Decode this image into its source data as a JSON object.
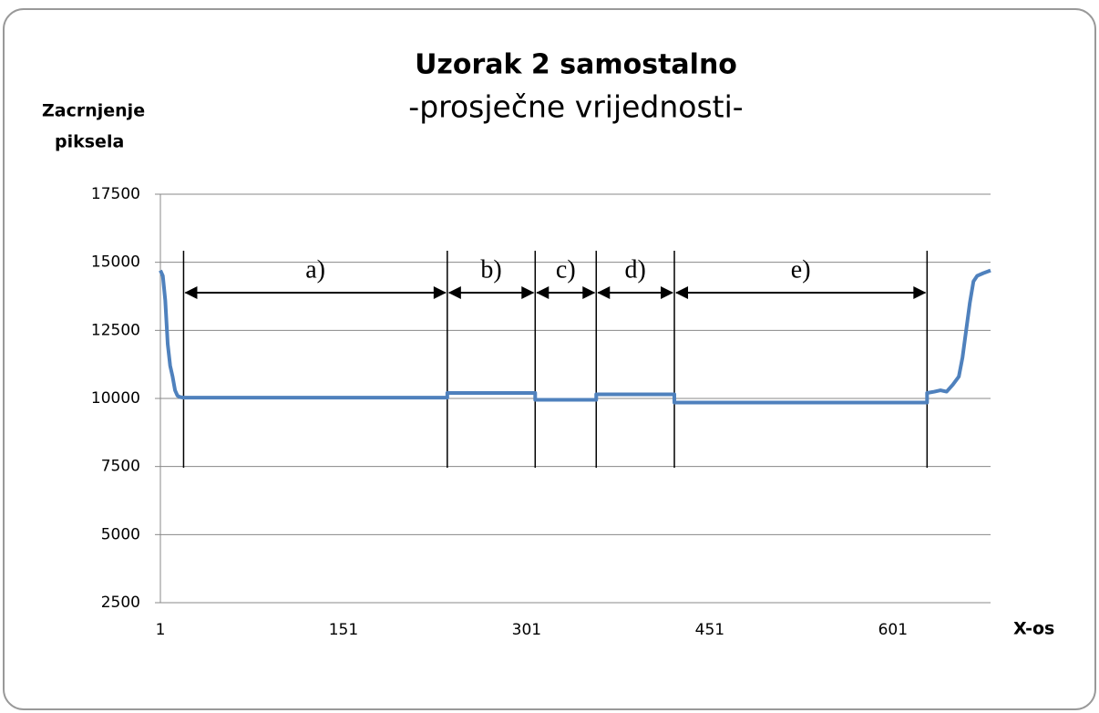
{
  "chart_data": {
    "type": "line",
    "title": "Uzorak 2 samostalno",
    "subtitle": "-prosječne vrijednosti-",
    "ylabel": [
      "Zacrnjenje",
      "piksela"
    ],
    "xlabel": "X-os",
    "x": [
      1,
      3,
      5,
      7,
      9,
      11,
      13,
      15,
      17,
      20,
      236,
      236,
      308,
      308,
      358,
      358,
      422,
      422,
      629,
      629,
      635,
      640,
      645,
      650,
      655,
      658,
      661,
      664,
      667,
      670,
      675,
      681
    ],
    "series": [
      {
        "name": "Zacrnjenje piksela",
        "color": "#4f81bd",
        "values": [
          14700,
          14500,
          13600,
          12000,
          11200,
          10800,
          10300,
          10100,
          10050,
          10030,
          10030,
          10200,
          10200,
          9950,
          9950,
          10150,
          10150,
          9850,
          9850,
          10200,
          10250,
          10300,
          10250,
          10500,
          10800,
          11500,
          12500,
          13500,
          14300,
          14500,
          14600,
          14700
        ]
      }
    ],
    "xlim": [
      1,
      681
    ],
    "xticks": [
      1,
      151,
      301,
      451,
      601
    ],
    "ylim": [
      2500,
      17500
    ],
    "yticks": [
      2500,
      5000,
      7500,
      10000,
      12500,
      15000,
      17500
    ],
    "grid": true,
    "segments": [
      {
        "label": "a)",
        "x": [
          20,
          236
        ]
      },
      {
        "label": "b)",
        "x": [
          236,
          308
        ]
      },
      {
        "label": "c)",
        "x": [
          308,
          358
        ]
      },
      {
        "label": "d)",
        "x": [
          358,
          422
        ]
      },
      {
        "label": "e)",
        "x": [
          422,
          629
        ]
      }
    ]
  }
}
